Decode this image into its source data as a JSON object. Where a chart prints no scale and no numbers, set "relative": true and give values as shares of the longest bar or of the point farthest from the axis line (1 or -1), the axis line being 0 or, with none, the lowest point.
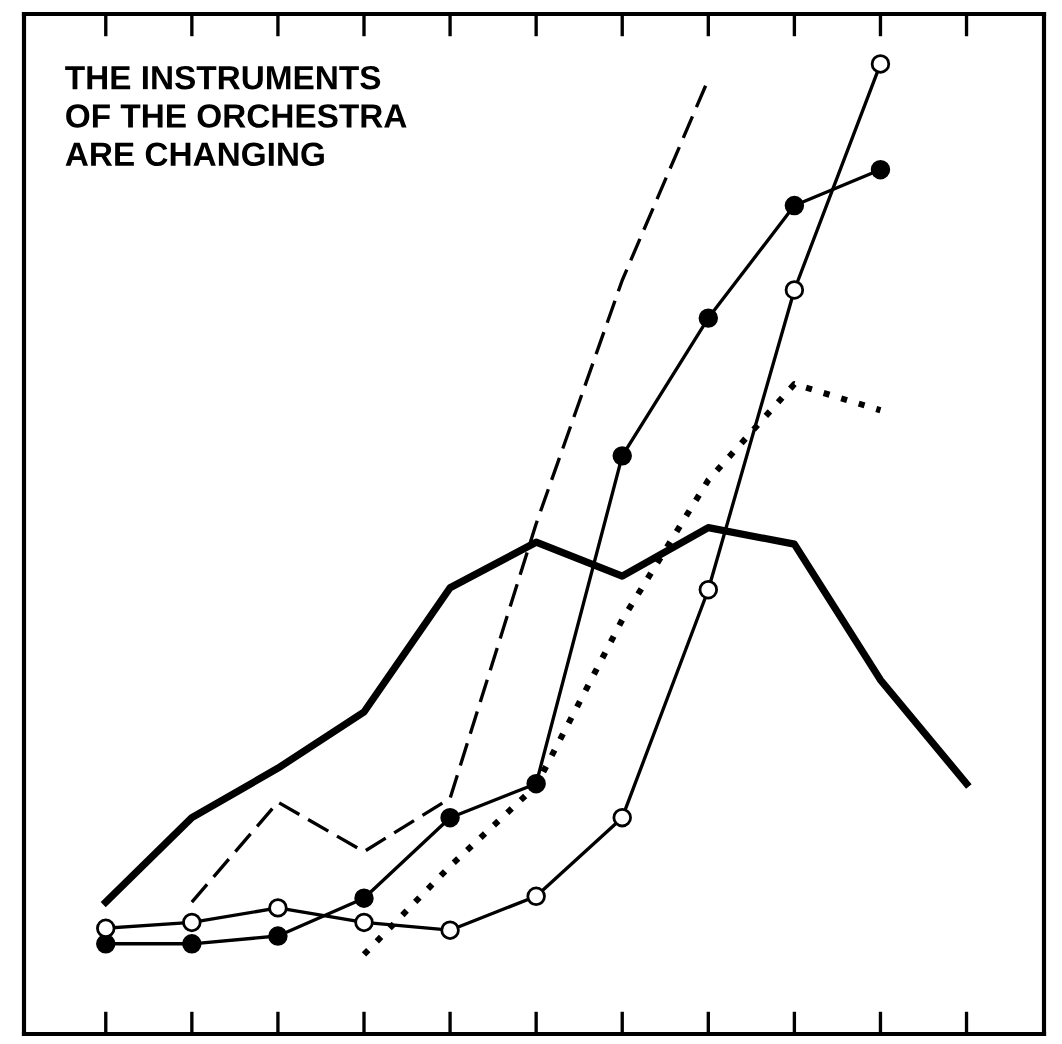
{
  "chart_data": {
    "type": "line",
    "title": "THE INSTRUMENTS\nOF THE ORCHESTRA\nARE CHANGING",
    "relative": true,
    "legend": false,
    "grid": false,
    "categories": [
      null,
      null,
      null,
      null,
      null,
      null,
      null,
      null,
      null,
      null,
      null
    ],
    "series": [
      {
        "color": "#000000",
        "line_style": "solid",
        "marker": "none",
        "values": [
          0.136,
          0.223,
          0.274,
          0.332,
          0.46,
          0.507,
          0.472,
          0.522,
          0.505,
          0.365,
          0.258
        ]
      },
      {
        "color": "#000000",
        "line_style": "dashed",
        "marker": "none",
        "values": [
          null,
          0.136,
          0.239,
          0.188,
          0.243,
          0.526,
          0.777,
          0.984,
          null,
          null,
          null
        ]
      },
      {
        "color": "#000000",
        "line_style": "solid",
        "marker": "circle",
        "values": [
          0.093,
          0.093,
          0.101,
          0.14,
          0.223,
          0.258,
          0.596,
          0.738,
          0.854,
          0.891,
          null
        ]
      },
      {
        "color": "#000000",
        "line_style": "solid",
        "marker": "circle",
        "values": [
          0.109,
          0.115,
          0.13,
          0.115,
          0.107,
          0.142,
          0.223,
          0.458,
          0.767,
          1.0,
          null
        ]
      },
      {
        "color": "#000000",
        "line_style": "dotted",
        "marker": "none",
        "values": [
          null,
          null,
          null,
          0.082,
          0.173,
          0.256,
          0.427,
          0.571,
          0.67,
          0.643,
          null
        ]
      }
    ]
  }
}
